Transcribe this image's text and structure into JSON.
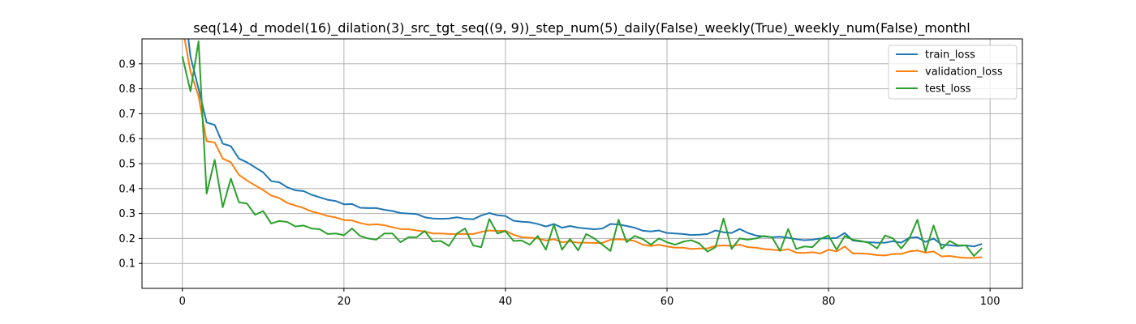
{
  "chart_data": {
    "type": "line",
    "title": "seq(14)_d_model(16)_dilation(3)_src_tgt_seq((9, 9))_step_num(5)_daily(False)_weekly(True)_weekly_num(False)_monthl",
    "xlabel": "",
    "ylabel": "",
    "xlim": [
      -5,
      104
    ],
    "ylim": [
      0,
      1.0
    ],
    "xticks": [
      0,
      20,
      40,
      60,
      80,
      100
    ],
    "yticks": [
      0.1,
      0.2,
      0.3,
      0.4,
      0.5,
      0.6,
      0.7,
      0.8,
      0.9
    ],
    "grid": true,
    "legend_position": "top-right",
    "series": [
      {
        "name": "train_loss",
        "color": "#1f77b4",
        "values": [
          1.2,
          0.93,
          0.8,
          0.665,
          0.655,
          0.58,
          0.57,
          0.52,
          0.505,
          0.485,
          0.465,
          0.43,
          0.425,
          0.405,
          0.393,
          0.39,
          0.375,
          0.365,
          0.355,
          0.35,
          0.337,
          0.338,
          0.323,
          0.322,
          0.322,
          0.315,
          0.31,
          0.302,
          0.3,
          0.298,
          0.285,
          0.28,
          0.279,
          0.28,
          0.285,
          0.279,
          0.277,
          0.292,
          0.302,
          0.293,
          0.29,
          0.271,
          0.267,
          0.265,
          0.258,
          0.248,
          0.258,
          0.243,
          0.25,
          0.243,
          0.24,
          0.237,
          0.24,
          0.258,
          0.256,
          0.25,
          0.243,
          0.231,
          0.228,
          0.232,
          0.222,
          0.22,
          0.218,
          0.214,
          0.215,
          0.218,
          0.232,
          0.225,
          0.222,
          0.238,
          0.222,
          0.212,
          0.208,
          0.205,
          0.207,
          0.203,
          0.197,
          0.193,
          0.195,
          0.2,
          0.2,
          0.202,
          0.222,
          0.192,
          0.188,
          0.185,
          0.183,
          0.183,
          0.189,
          0.183,
          0.203,
          0.205,
          0.186,
          0.2,
          0.175,
          0.173,
          0.17,
          0.172,
          0.168,
          0.178
        ]
      },
      {
        "name": "validation_loss",
        "color": "#ff7f0e",
        "values": [
          1.05,
          0.87,
          0.77,
          0.59,
          0.585,
          0.52,
          0.505,
          0.455,
          0.432,
          0.413,
          0.394,
          0.372,
          0.362,
          0.342,
          0.332,
          0.322,
          0.308,
          0.3,
          0.29,
          0.284,
          0.274,
          0.272,
          0.262,
          0.255,
          0.257,
          0.253,
          0.245,
          0.238,
          0.237,
          0.232,
          0.228,
          0.22,
          0.22,
          0.218,
          0.218,
          0.218,
          0.218,
          0.226,
          0.232,
          0.23,
          0.231,
          0.215,
          0.205,
          0.203,
          0.2,
          0.192,
          0.197,
          0.185,
          0.188,
          0.183,
          0.183,
          0.182,
          0.182,
          0.195,
          0.197,
          0.195,
          0.19,
          0.175,
          0.17,
          0.175,
          0.168,
          0.163,
          0.163,
          0.158,
          0.16,
          0.16,
          0.17,
          0.172,
          0.17,
          0.175,
          0.165,
          0.163,
          0.158,
          0.155,
          0.152,
          0.157,
          0.143,
          0.142,
          0.145,
          0.14,
          0.155,
          0.148,
          0.168,
          0.14,
          0.14,
          0.138,
          0.133,
          0.132,
          0.138,
          0.138,
          0.148,
          0.152,
          0.143,
          0.148,
          0.128,
          0.13,
          0.125,
          0.122,
          0.122,
          0.125
        ]
      },
      {
        "name": "test_loss",
        "color": "#2ca02c",
        "values": [
          0.93,
          0.79,
          0.99,
          0.38,
          0.515,
          0.325,
          0.44,
          0.345,
          0.34,
          0.295,
          0.31,
          0.26,
          0.27,
          0.266,
          0.248,
          0.252,
          0.24,
          0.237,
          0.218,
          0.22,
          0.213,
          0.24,
          0.21,
          0.2,
          0.195,
          0.22,
          0.22,
          0.185,
          0.205,
          0.205,
          0.23,
          0.188,
          0.19,
          0.17,
          0.22,
          0.24,
          0.172,
          0.165,
          0.278,
          0.22,
          0.23,
          0.19,
          0.192,
          0.175,
          0.21,
          0.155,
          0.255,
          0.155,
          0.198,
          0.152,
          0.218,
          0.2,
          0.175,
          0.15,
          0.275,
          0.185,
          0.21,
          0.198,
          0.175,
          0.2,
          0.185,
          0.175,
          0.187,
          0.193,
          0.18,
          0.147,
          0.165,
          0.28,
          0.158,
          0.2,
          0.195,
          0.2,
          0.21,
          0.205,
          0.15,
          0.238,
          0.158,
          0.168,
          0.165,
          0.198,
          0.212,
          0.155,
          0.21,
          0.195,
          0.19,
          0.182,
          0.16,
          0.212,
          0.2,
          0.16,
          0.2,
          0.275,
          0.148,
          0.252,
          0.158,
          0.19,
          0.173,
          0.172,
          0.13,
          0.162
        ]
      }
    ]
  }
}
